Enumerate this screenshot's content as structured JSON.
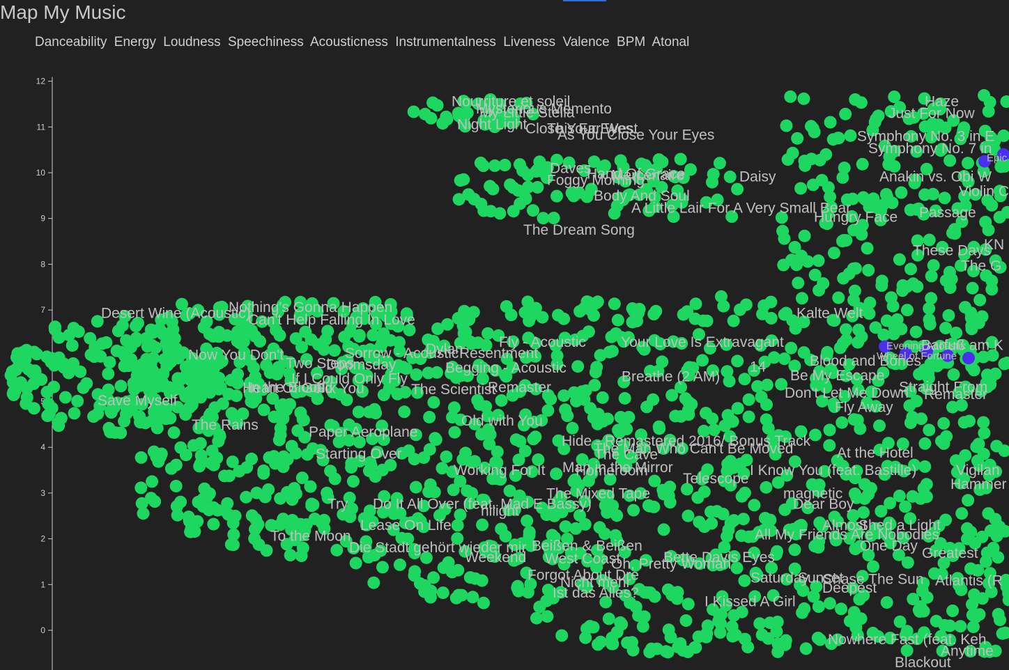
{
  "app": {
    "title": "Map My Music"
  },
  "features": [
    "Danceability",
    "Energy",
    "Loudness",
    "Speechiness",
    "Acousticness",
    "Instrumentalness",
    "Liveness",
    "Valence",
    "BPM",
    "Atonal"
  ],
  "colors": {
    "background": "#212121",
    "point": "#1ed760",
    "highlight": "#4b2ff0",
    "text": "#c8c8c8",
    "accent": "#2d6fd6"
  },
  "chart_data": {
    "type": "scatter",
    "ylim": [
      -0.8,
      12.2
    ],
    "xlim": [
      0,
      1448
    ],
    "yticks": [
      0,
      1,
      2,
      3,
      4,
      5,
      6,
      7,
      8,
      9,
      10,
      11,
      12
    ],
    "grid": false,
    "clusters": [
      {
        "name": "upper-left-band",
        "x": [
          590,
          770
        ],
        "y": [
          11.0,
          11.6
        ],
        "n": 40
      },
      {
        "name": "upper-mid-band",
        "x": [
          655,
          1060
        ],
        "y": [
          9.0,
          10.3
        ],
        "n": 95
      },
      {
        "name": "upper-right-band",
        "x": [
          1120,
          1448
        ],
        "y": [
          7.4,
          11.7
        ],
        "n": 190
      },
      {
        "name": "main-left",
        "x": [
          15,
          320
        ],
        "y": [
          4.2,
          7.0
        ],
        "n": 190
      },
      {
        "name": "main-body",
        "x": [
          200,
          1448
        ],
        "y": [
          -0.5,
          7.2
        ],
        "n": 1350
      }
    ],
    "highlights": [
      {
        "x": 1413,
        "y": 10.25
      },
      {
        "x": 1440,
        "y": 10.4
      },
      {
        "x": 1270,
        "y": 6.2
      },
      {
        "x": 1300,
        "y": 6.05
      },
      {
        "x": 1330,
        "y": 6.1
      },
      {
        "x": 1360,
        "y": 6.0
      },
      {
        "x": 1390,
        "y": 5.95
      }
    ],
    "labels": [
      {
        "text": "Nourriture et soleil",
        "x": 648,
        "y": 11.56
      },
      {
        "text": "Mysterious Memento",
        "x": 683,
        "y": 11.4
      },
      {
        "text": "My Little Stella",
        "x": 688,
        "y": 11.32
      },
      {
        "text": "Night Light",
        "x": 656,
        "y": 11.06
      },
      {
        "text": "Close Your Eyes",
        "x": 754,
        "y": 10.97
      },
      {
        "text": "This Far West",
        "x": 785,
        "y": 10.97
      },
      {
        "text": "As You Close Your Eyes",
        "x": 800,
        "y": 10.83
      },
      {
        "text": "Daves",
        "x": 789,
        "y": 10.1
      },
      {
        "text": "Foggy Morning",
        "x": 785,
        "y": 9.84
      },
      {
        "text": "Hand Of Grace",
        "x": 842,
        "y": 9.98
      },
      {
        "text": "Mercenaire",
        "x": 877,
        "y": 9.95
      },
      {
        "text": "Daisy",
        "x": 1061,
        "y": 9.92
      },
      {
        "text": "Body And Soul",
        "x": 852,
        "y": 9.5
      },
      {
        "text": "A Little Lair For A Very Small Bear",
        "x": 906,
        "y": 9.23
      },
      {
        "text": "Hungry Face",
        "x": 1168,
        "y": 9.03
      },
      {
        "text": "Passage",
        "x": 1319,
        "y": 9.13
      },
      {
        "text": "The Dream Song",
        "x": 751,
        "y": 8.75
      },
      {
        "text": "Haze",
        "x": 1327,
        "y": 11.56
      },
      {
        "text": "Just For Now",
        "x": 1275,
        "y": 11.3
      },
      {
        "text": "Symphony No. 3 in E",
        "x": 1230,
        "y": 10.8
      },
      {
        "text": "Symphony No. 7 in",
        "x": 1246,
        "y": 10.53
      },
      {
        "text": "Anakin vs. Obi W",
        "x": 1262,
        "y": 9.92
      },
      {
        "text": "Violin C",
        "x": 1376,
        "y": 9.6
      },
      {
        "text": "These Days",
        "x": 1310,
        "y": 8.3
      },
      {
        "text": "KN",
        "x": 1412,
        "y": 8.43
      },
      {
        "text": "The G",
        "x": 1379,
        "y": 7.97
      },
      {
        "text": "Kalte Welt",
        "x": 1143,
        "y": 6.93
      },
      {
        "text": "Barfuß am K",
        "x": 1322,
        "y": 6.23
      },
      {
        "text": "Desert Wine (Acoustic)",
        "x": 145,
        "y": 6.93
      },
      {
        "text": "Nothing's Gonna Happen",
        "x": 328,
        "y": 7.06
      },
      {
        "text": "Can't Help Falling In Love",
        "x": 356,
        "y": 6.79
      },
      {
        "text": "Now You Don't",
        "x": 270,
        "y": 6.02
      },
      {
        "text": "Sorrow - Acoustic",
        "x": 495,
        "y": 6.06
      },
      {
        "text": "Dylan",
        "x": 611,
        "y": 6.15
      },
      {
        "text": "Resentment",
        "x": 659,
        "y": 6.06
      },
      {
        "text": "Fly - Acoustic",
        "x": 716,
        "y": 6.3
      },
      {
        "text": "Your Love Is Extravagant",
        "x": 891,
        "y": 6.3
      },
      {
        "text": "Two Steps",
        "x": 410,
        "y": 5.84
      },
      {
        "text": "Doomsday",
        "x": 468,
        "y": 5.81
      },
      {
        "text": "Begging - Acoustic",
        "x": 639,
        "y": 5.74
      },
      {
        "text": "Breathe (2 AM)",
        "x": 892,
        "y": 5.55
      },
      {
        "text": "14",
        "x": 1076,
        "y": 5.76
      },
      {
        "text": "Blood and Bones",
        "x": 1162,
        "y": 5.89
      },
      {
        "text": "Be My Escape",
        "x": 1134,
        "y": 5.57
      },
      {
        "text": "If I Could Only Fly",
        "x": 418,
        "y": 5.5
      },
      {
        "text": "Heart Of Gold",
        "x": 348,
        "y": 5.3
      },
      {
        "text": "In the Blood",
        "x": 355,
        "y": 5.31
      },
      {
        "text": "Fix You",
        "x": 454,
        "y": 5.29
      },
      {
        "text": "The Scientist",
        "x": 590,
        "y": 5.27
      },
      {
        "text": "Remaster",
        "x": 700,
        "y": 5.31
      },
      {
        "text": "Don't Let Me Down",
        "x": 1126,
        "y": 5.19
      },
      {
        "text": "Straight From",
        "x": 1290,
        "y": 5.32
      },
      {
        "text": "Remaster",
        "x": 1326,
        "y": 5.16
      },
      {
        "text": "Save Myself",
        "x": 140,
        "y": 5.02
      },
      {
        "text": "Fly Away",
        "x": 1198,
        "y": 4.88
      },
      {
        "text": "The Rains",
        "x": 275,
        "y": 4.49
      },
      {
        "text": "Paper Aeroplane",
        "x": 443,
        "y": 4.34
      },
      {
        "text": "Old with You",
        "x": 662,
        "y": 4.58
      },
      {
        "text": "Hide - Remastered 2016/ Bonus Track",
        "x": 806,
        "y": 4.14
      },
      {
        "text": "The Man Who Can't Be Moved",
        "x": 852,
        "y": 3.97
      },
      {
        "text": "At the Hotel",
        "x": 1201,
        "y": 3.88
      },
      {
        "text": "Starting Over",
        "x": 453,
        "y": 3.86
      },
      {
        "text": "The Cave",
        "x": 853,
        "y": 3.84
      },
      {
        "text": "Working For It",
        "x": 651,
        "y": 3.5
      },
      {
        "text": "Man in the Mirror",
        "x": 807,
        "y": 3.56
      },
      {
        "text": "Homeroom",
        "x": 826,
        "y": 3.49
      },
      {
        "text": "Telescope",
        "x": 980,
        "y": 3.32
      },
      {
        "text": "I Know You (feat. Bastille)",
        "x": 1076,
        "y": 3.5
      },
      {
        "text": "Vigilan",
        "x": 1372,
        "y": 3.5
      },
      {
        "text": "Hammer",
        "x": 1364,
        "y": 3.2
      },
      {
        "text": "The Mixed Tape",
        "x": 784,
        "y": 2.99
      },
      {
        "text": "magnetic",
        "x": 1124,
        "y": 2.99
      },
      {
        "text": "Try",
        "x": 470,
        "y": 2.76
      },
      {
        "text": "Do It All Over (feat. Mad E Bassy)",
        "x": 535,
        "y": 2.76
      },
      {
        "text": "hilight",
        "x": 690,
        "y": 2.61
      },
      {
        "text": "Dear Boy",
        "x": 1138,
        "y": 2.76
      },
      {
        "text": "Lease On Life",
        "x": 517,
        "y": 2.3
      },
      {
        "text": "Almost",
        "x": 1180,
        "y": 2.3
      },
      {
        "text": "Shed a Light",
        "x": 1232,
        "y": 2.3
      },
      {
        "text": "All My Friends Are Nobodies",
        "x": 1083,
        "y": 2.09
      },
      {
        "text": "To the Moon",
        "x": 388,
        "y": 2.06
      },
      {
        "text": "Die Stadt gehört wieder mir",
        "x": 501,
        "y": 1.81
      },
      {
        "text": "Beißen & Beißen",
        "x": 763,
        "y": 1.85
      },
      {
        "text": "One Day",
        "x": 1234,
        "y": 1.85
      },
      {
        "text": "Weekend",
        "x": 667,
        "y": 1.6
      },
      {
        "text": "West Coast",
        "x": 782,
        "y": 1.57
      },
      {
        "text": "Bette Davis Eyes",
        "x": 952,
        "y": 1.6
      },
      {
        "text": "Greatest",
        "x": 1323,
        "y": 1.69
      },
      {
        "text": "Oh, Pretty Woman",
        "x": 877,
        "y": 1.45
      },
      {
        "text": "Forgot About Dre",
        "x": 757,
        "y": 1.21
      },
      {
        "text": "Saturday",
        "x": 1077,
        "y": 1.15
      },
      {
        "text": "Sunset",
        "x": 1145,
        "y": 1.15
      },
      {
        "text": "Chase The Sun",
        "x": 1180,
        "y": 1.12
      },
      {
        "text": "Atlantis (R",
        "x": 1342,
        "y": 1.09
      },
      {
        "text": "Nicht mehr",
        "x": 804,
        "y": 1.05
      },
      {
        "text": "Deepest",
        "x": 1180,
        "y": 0.93
      },
      {
        "text": "Ist das Alles?",
        "x": 793,
        "y": 0.82
      },
      {
        "text": "I Kissed A Girl",
        "x": 1011,
        "y": 0.63
      },
      {
        "text": "Nowhere Fast (feat. Keh",
        "x": 1188,
        "y": -0.2
      },
      {
        "text": "Anytime",
        "x": 1350,
        "y": -0.45
      },
      {
        "text": "Blackout",
        "x": 1284,
        "y": -0.7
      }
    ],
    "small_labels": [
      {
        "text": "Epic",
        "x": 1416,
        "y": 10.33
      },
      {
        "text": "Evening Acoustic",
        "x": 1272,
        "y": 6.22
      },
      {
        "text": "Wheel of Fortune",
        "x": 1258,
        "y": 6.0
      }
    ]
  }
}
